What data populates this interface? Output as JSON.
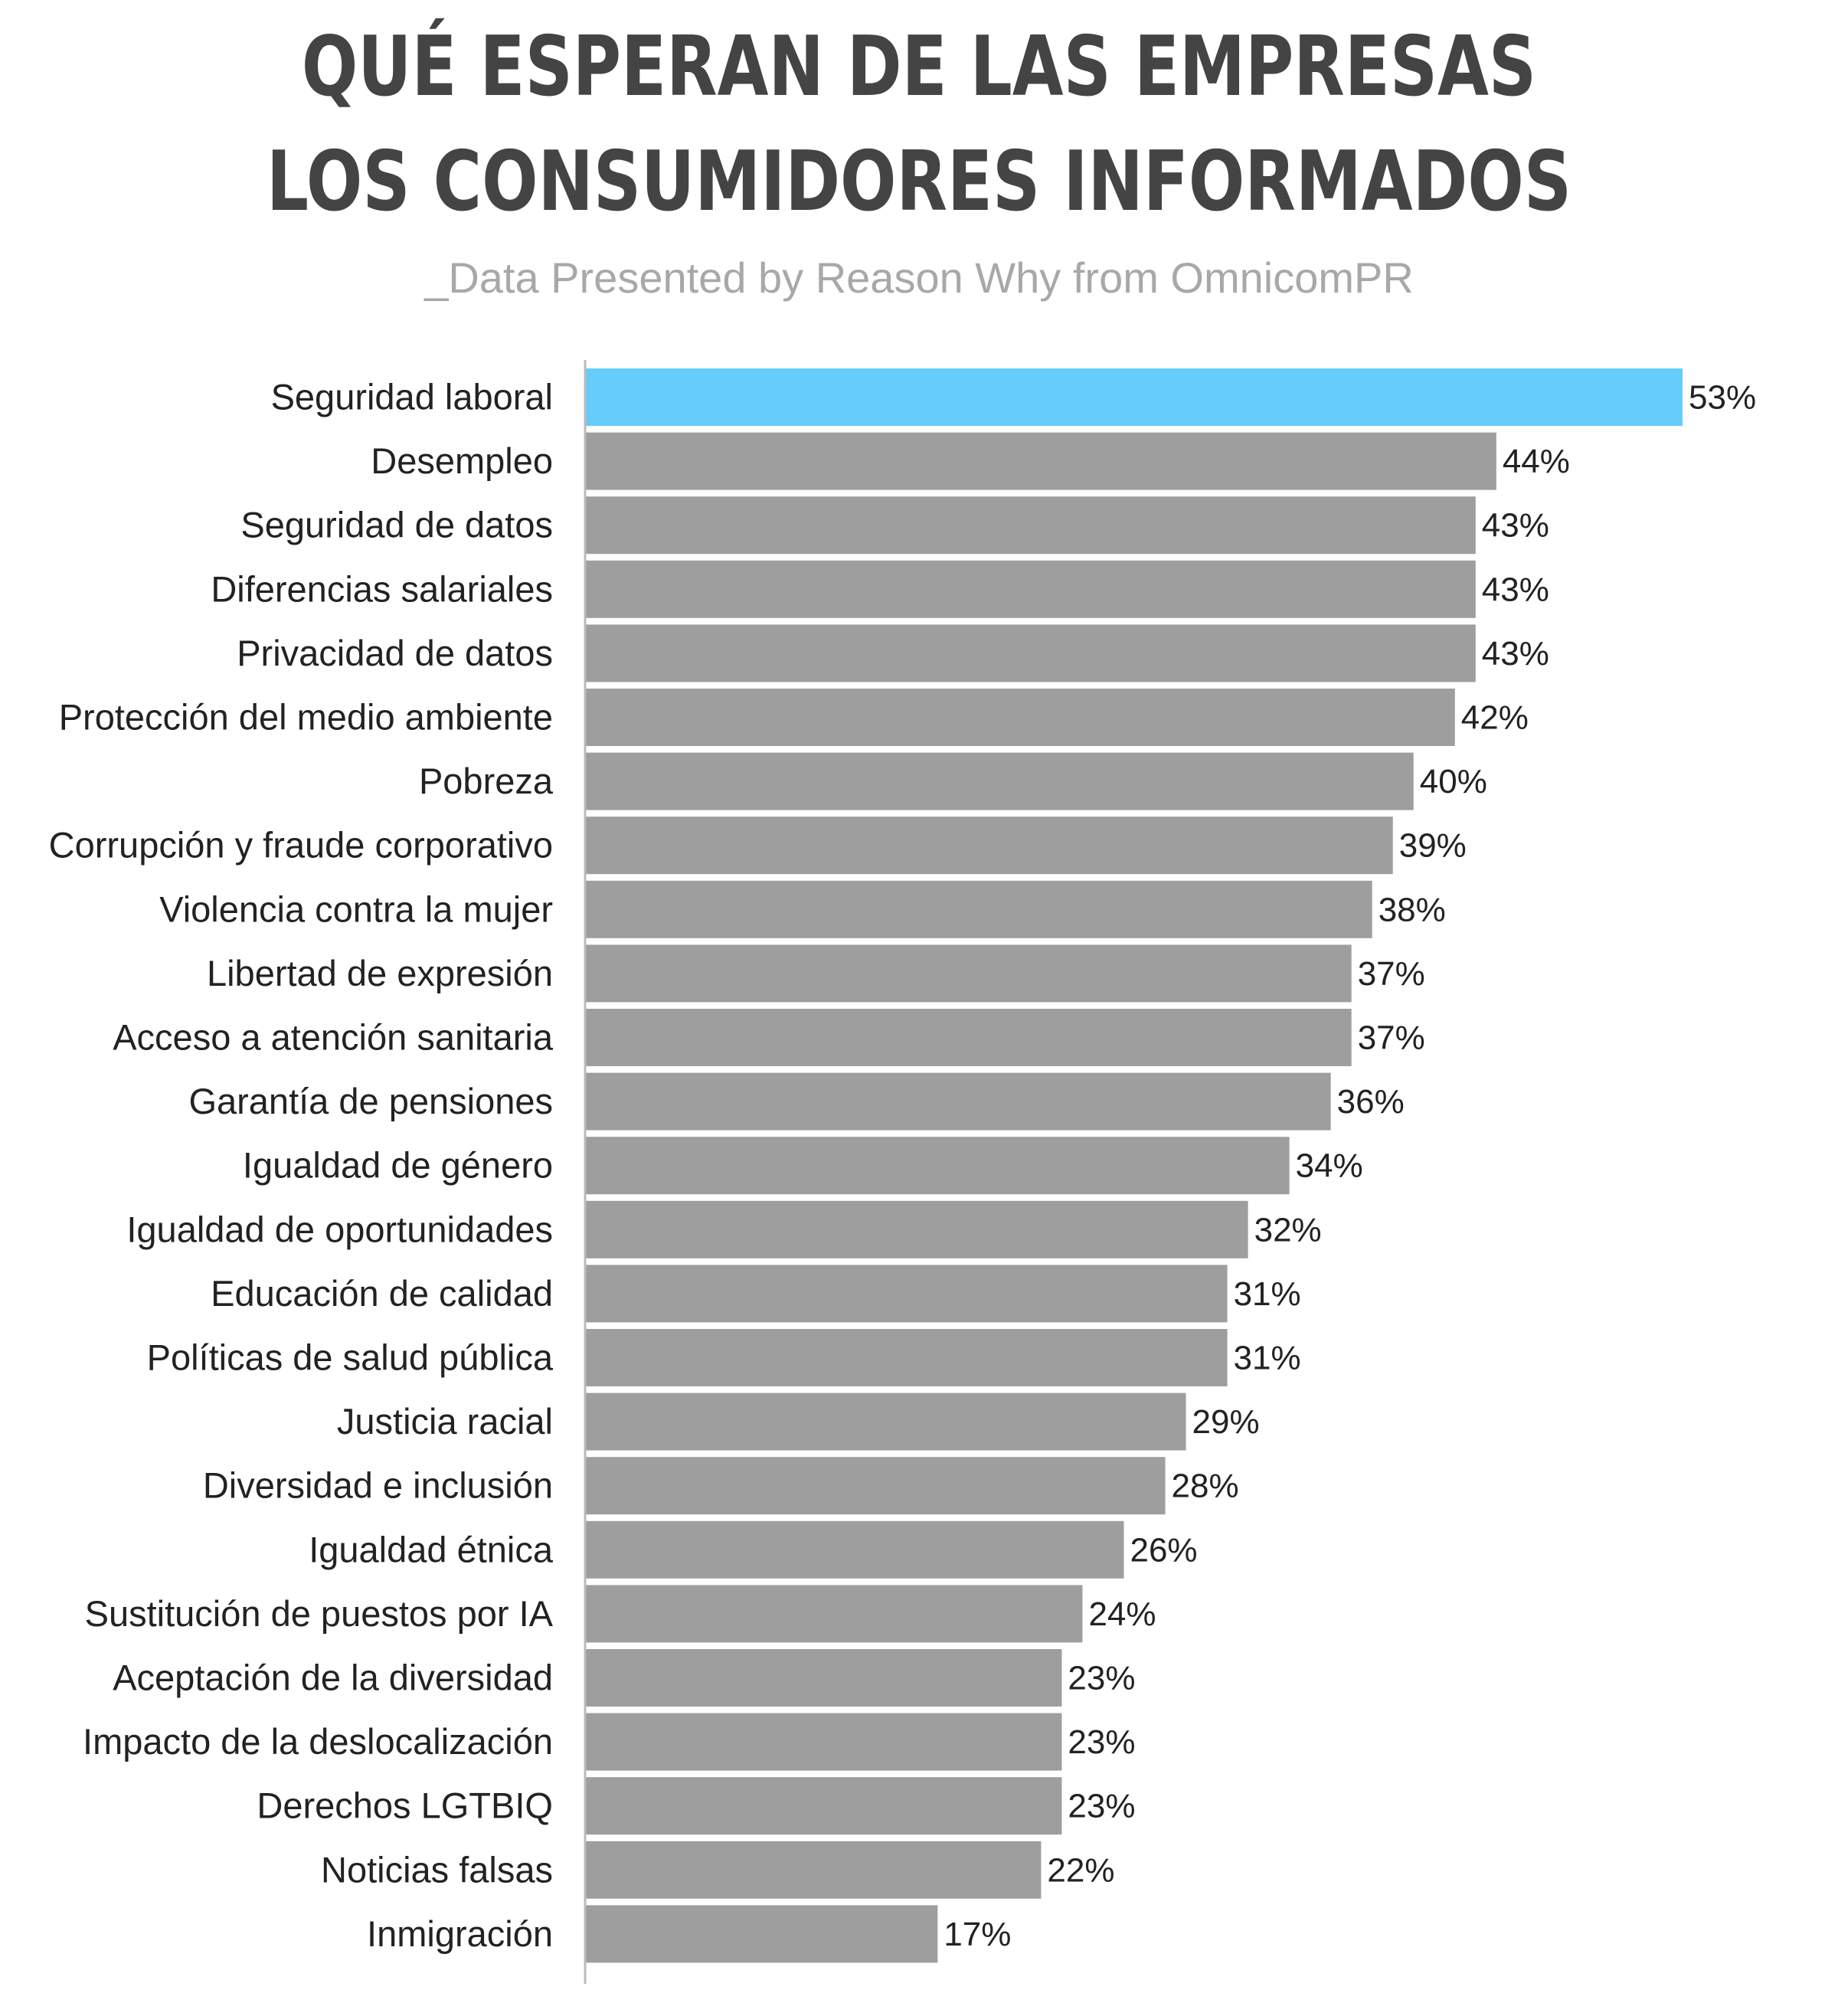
{
  "chart_data": {
    "type": "bar",
    "orientation": "horizontal",
    "title": "QUÉ ESPERAN DE LAS EMPRESAS LOS CONSUMIDORES INFORMADOS",
    "title_lines": [
      "QUÉ ESPERAN DE LAS EMPRESAS",
      "LOS CONSUMIDORES INFORMADOS"
    ],
    "subtitle": "_Data Presented by Reason Why from OmnicomPR",
    "categories": [
      "Seguridad laboral",
      "Desempleo",
      "Seguridad de datos",
      "Diferencias salariales",
      "Privacidad de datos",
      "Protección del medio ambiente",
      "Pobreza",
      "Corrupción y fraude corporativo",
      "Violencia contra la mujer",
      "Libertad de expresión",
      "Acceso a atención sanitaria",
      "Garantía de pensiones",
      "Igualdad de género",
      "Igualdad de oportunidades",
      "Educación de calidad",
      "Políticas de salud pública",
      "Justicia racial",
      "Diversidad e inclusión",
      "Igualdad étnica",
      "Sustitución de puestos por IA",
      "Aceptación de la diversidad",
      "Impacto de la deslocalización",
      "Derechos LGTBIQ",
      "Noticias falsas",
      "Inmigración"
    ],
    "values": [
      53,
      44,
      43,
      43,
      43,
      42,
      40,
      39,
      38,
      37,
      37,
      36,
      34,
      32,
      31,
      31,
      29,
      28,
      26,
      24,
      23,
      23,
      23,
      22,
      17
    ],
    "value_labels": [
      "53%",
      "44%",
      "43%",
      "43%",
      "43%",
      "42%",
      "40%",
      "39%",
      "38%",
      "37%",
      "37%",
      "36%",
      "34%",
      "32%",
      "31%",
      "31%",
      "29%",
      "28%",
      "26%",
      "24%",
      "23%",
      "23%",
      "23%",
      "22%",
      "17%"
    ],
    "xlim": [
      0,
      53
    ],
    "grid": false,
    "colors": {
      "highlight": "#66ccfa",
      "bar": "#9e9e9e",
      "axis": "#bbbbbb",
      "title": "#444444",
      "subtitle": "#a8a8a8"
    }
  }
}
